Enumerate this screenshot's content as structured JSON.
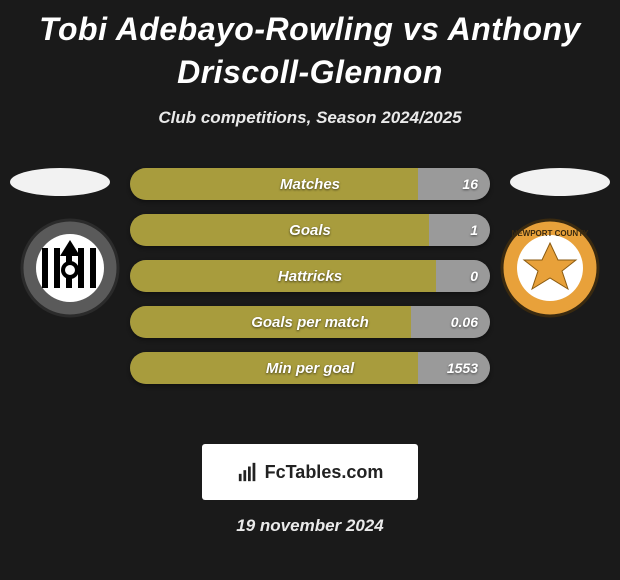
{
  "title": "Tobi Adebayo-Rowling vs Anthony Driscoll-Glennon",
  "subtitle": "Club competitions, Season 2024/2025",
  "footer_date": "19 november 2024",
  "branding": "FcTables.com",
  "colors": {
    "background": "#1a1a1a",
    "oval": "#f2f2f2",
    "bar_left": "#a89c3d",
    "bar_right": "#9a9a9a",
    "bar_track": "#3a3a3a",
    "text": "#ffffff"
  },
  "player_left": {
    "name": "Tobi Adebayo-Rowling",
    "crest_name": "notts-county-badge"
  },
  "player_right": {
    "name": "Anthony Driscoll-Glennon",
    "crest_name": "newport-county-badge"
  },
  "stats": [
    {
      "label": "Matches",
      "left_value": "",
      "right_value": "16",
      "left_pct": 80,
      "right_pct": 20
    },
    {
      "label": "Goals",
      "left_value": "",
      "right_value": "1",
      "left_pct": 83,
      "right_pct": 17
    },
    {
      "label": "Hattricks",
      "left_value": "",
      "right_value": "0",
      "left_pct": 85,
      "right_pct": 15
    },
    {
      "label": "Goals per match",
      "left_value": "",
      "right_value": "0.06",
      "left_pct": 78,
      "right_pct": 22
    },
    {
      "label": "Min per goal",
      "left_value": "",
      "right_value": "1553",
      "left_pct": 80,
      "right_pct": 20
    }
  ]
}
